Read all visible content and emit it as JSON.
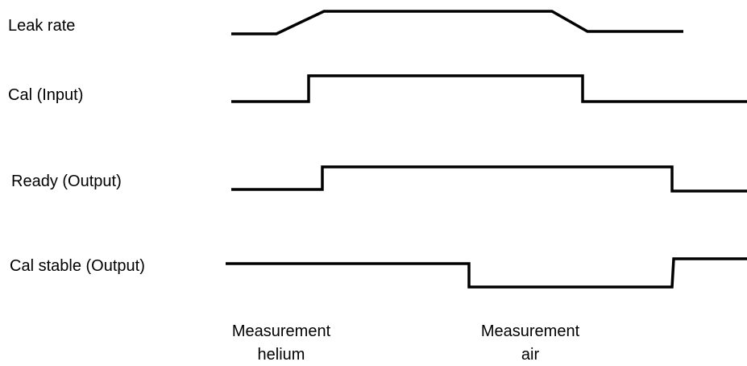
{
  "signals": [
    {
      "label": "Leak rate"
    },
    {
      "label": "Cal (Input)"
    },
    {
      "label": "Ready (Output)"
    },
    {
      "label": "Cal stable (Output)"
    }
  ],
  "phases": [
    {
      "line1": "Measurement",
      "line2": "helium"
    },
    {
      "line1": "Measurement",
      "line2": "air"
    }
  ],
  "colors": {
    "trace": "#000000",
    "background": "#ffffff"
  }
}
